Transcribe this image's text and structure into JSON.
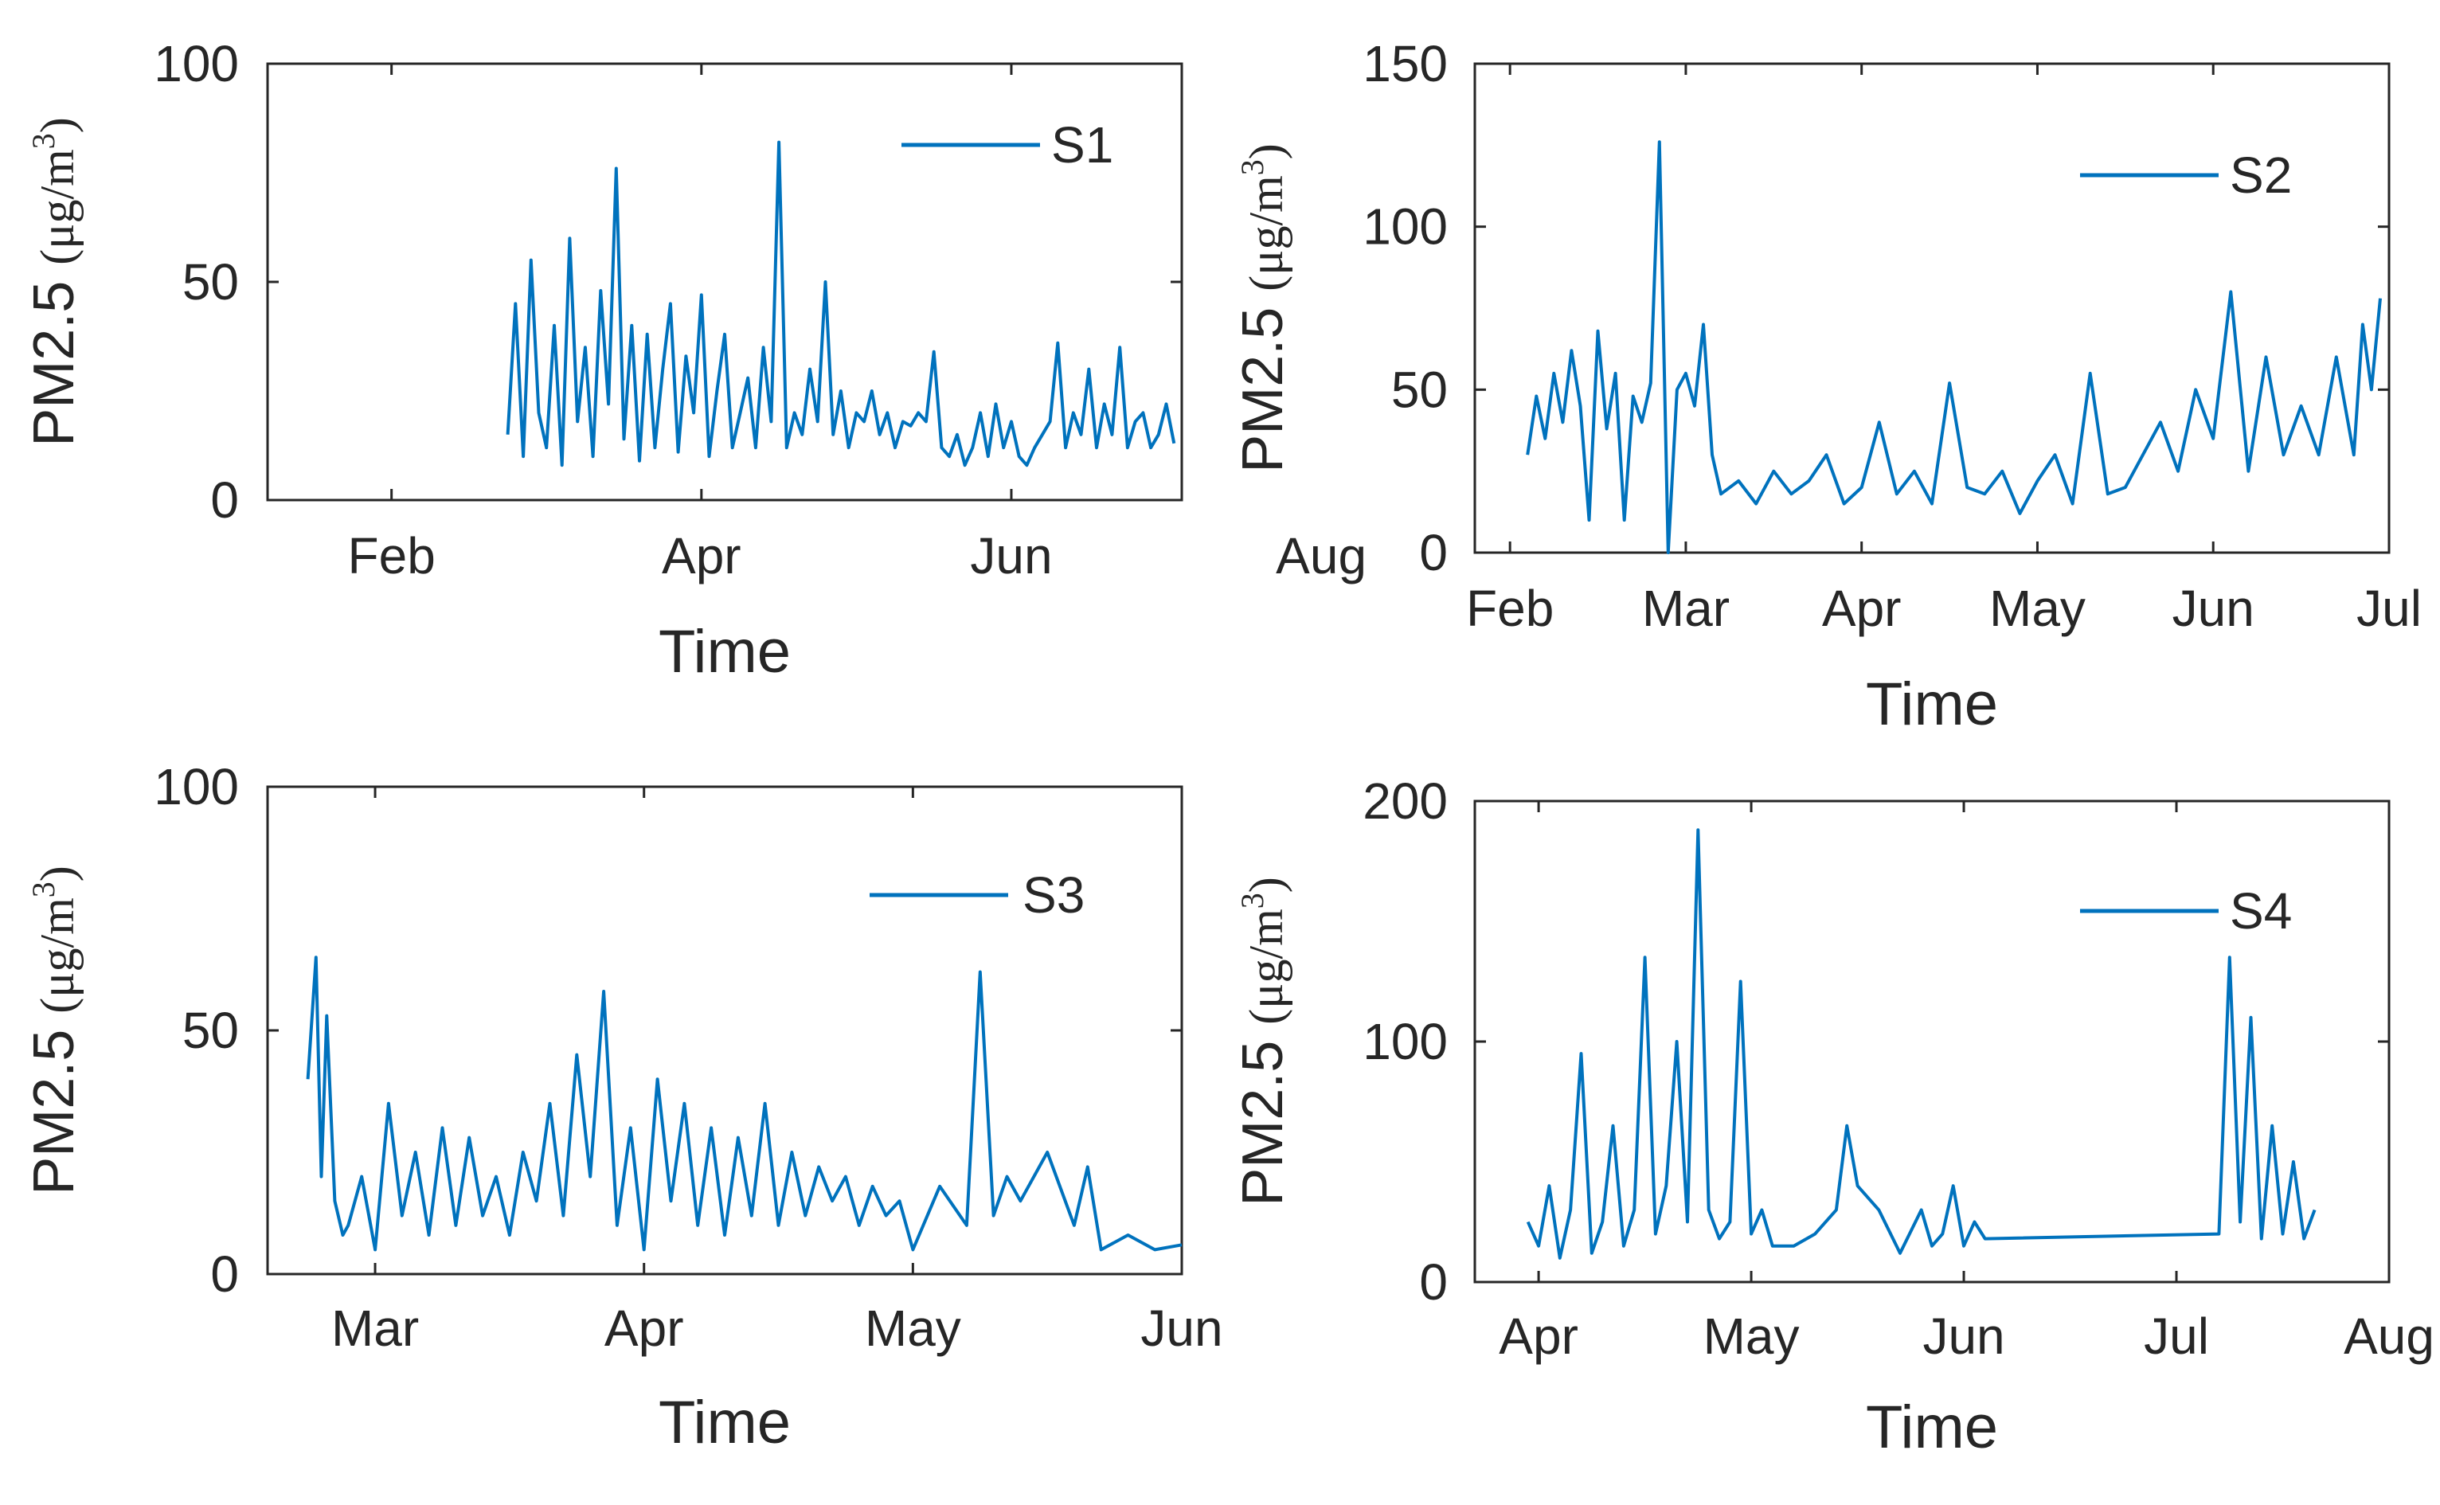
{
  "colors": {
    "series": "#0072BD",
    "axis": "#262626",
    "background": "#ffffff"
  },
  "chart_data": [
    {
      "type": "line",
      "panel": "top-left",
      "xlabel": "Time",
      "ylabel": "PM2.5",
      "yunit": "(μg/m",
      "yunit_sup": "3",
      "yunit_close": ")",
      "ylim": [
        0,
        100
      ],
      "yticks": [
        0,
        50,
        100
      ],
      "ytick_labels": [
        "0",
        "50",
        "100"
      ],
      "xlim": [
        1.2,
        7.1
      ],
      "xticks": [
        2,
        4,
        6,
        8
      ],
      "xtick_labels": [
        "Feb",
        "Apr",
        "Jun",
        "Aug"
      ],
      "legend": {
        "label": "S1",
        "position": "top-right"
      },
      "series": [
        {
          "name": "S1",
          "x": [
            2.75,
            2.8,
            2.85,
            2.9,
            2.95,
            3.0,
            3.05,
            3.1,
            3.15,
            3.2,
            3.25,
            3.3,
            3.35,
            3.4,
            3.45,
            3.5,
            3.55,
            3.6,
            3.65,
            3.7,
            3.75,
            3.8,
            3.85,
            3.9,
            3.95,
            4.0,
            4.05,
            4.1,
            4.15,
            4.2,
            4.25,
            4.3,
            4.35,
            4.4,
            4.45,
            4.5,
            4.55,
            4.6,
            4.65,
            4.7,
            4.75,
            4.8,
            4.85,
            4.9,
            4.95,
            5.0,
            5.05,
            5.1,
            5.15,
            5.2,
            5.25,
            5.3,
            5.35,
            5.4,
            5.45,
            5.5,
            5.55,
            5.6,
            5.65,
            5.7,
            5.75,
            5.8,
            5.85,
            5.9,
            5.95,
            6.0,
            6.05,
            6.1,
            6.15,
            6.2,
            6.25,
            6.3,
            6.35,
            6.4,
            6.45,
            6.5,
            6.55,
            6.6,
            6.65,
            6.7,
            6.75,
            6.8,
            6.85,
            6.9,
            6.95,
            7.0,
            7.05
          ],
          "values": [
            15,
            45,
            10,
            55,
            20,
            12,
            40,
            8,
            60,
            18,
            35,
            10,
            48,
            22,
            76,
            14,
            40,
            9,
            38,
            12,
            30,
            45,
            11,
            33,
            20,
            47,
            10,
            25,
            38,
            12,
            20,
            28,
            12,
            35,
            18,
            82,
            12,
            20,
            15,
            30,
            18,
            50,
            15,
            25,
            12,
            20,
            18,
            25,
            15,
            20,
            12,
            18,
            17,
            20,
            18,
            34,
            12,
            10,
            15,
            8,
            12,
            20,
            10,
            22,
            12,
            18,
            10,
            8,
            12,
            15,
            18,
            36,
            12,
            20,
            15,
            30,
            12,
            22,
            15,
            35,
            12,
            18,
            20,
            12,
            15,
            22,
            13
          ]
        }
      ]
    },
    {
      "type": "line",
      "panel": "top-right",
      "xlabel": "Time",
      "ylabel": "PM2.5",
      "yunit": "(μg/m",
      "yunit_sup": "3",
      "yunit_close": ")",
      "ylim": [
        0,
        150
      ],
      "yticks": [
        0,
        50,
        100,
        150
      ],
      "ytick_labels": [
        "0",
        "50",
        "100",
        "150"
      ],
      "xlim": [
        1.8,
        7.0
      ],
      "xticks": [
        2,
        3,
        4,
        5,
        6,
        7
      ],
      "xtick_labels": [
        "Feb",
        "Mar",
        "Apr",
        "May",
        "Jun",
        "Jul"
      ],
      "legend": {
        "label": "S2",
        "position": "top-right"
      },
      "series": [
        {
          "name": "S2",
          "x": [
            2.1,
            2.15,
            2.2,
            2.25,
            2.3,
            2.35,
            2.4,
            2.45,
            2.5,
            2.55,
            2.6,
            2.65,
            2.7,
            2.75,
            2.8,
            2.85,
            2.9,
            2.95,
            3.0,
            3.05,
            3.1,
            3.15,
            3.2,
            3.3,
            3.4,
            3.5,
            3.6,
            3.7,
            3.8,
            3.9,
            4.0,
            4.1,
            4.2,
            4.3,
            4.4,
            4.5,
            4.6,
            4.7,
            4.8,
            4.9,
            5.0,
            5.1,
            5.2,
            5.3,
            5.4,
            5.5,
            5.6,
            5.7,
            5.8,
            5.9,
            6.0,
            6.1,
            6.2,
            6.3,
            6.4,
            6.5,
            6.6,
            6.7,
            6.8,
            6.85,
            6.9,
            6.95
          ],
          "values": [
            30,
            48,
            35,
            55,
            40,
            62,
            45,
            10,
            68,
            38,
            55,
            10,
            48,
            40,
            52,
            126,
            0,
            50,
            55,
            45,
            70,
            30,
            18,
            22,
            15,
            25,
            18,
            22,
            30,
            15,
            20,
            40,
            18,
            25,
            15,
            52,
            20,
            18,
            25,
            12,
            22,
            30,
            15,
            55,
            18,
            20,
            30,
            40,
            25,
            50,
            35,
            80,
            25,
            60,
            30,
            45,
            30,
            60,
            30,
            70,
            50,
            78
          ]
        }
      ]
    },
    {
      "type": "line",
      "panel": "bottom-left",
      "xlabel": "Time",
      "ylabel": "PM2.5",
      "yunit": "(μg/m",
      "yunit_sup": "3",
      "yunit_close": ")",
      "ylim": [
        0,
        100
      ],
      "yticks": [
        0,
        50,
        100
      ],
      "ytick_labels": [
        "0",
        "50",
        "100"
      ],
      "xlim": [
        2.6,
        6.0
      ],
      "xticks": [
        3,
        4,
        5,
        6
      ],
      "xtick_labels": [
        "Mar",
        "Apr",
        "May",
        "Jun"
      ],
      "legend": {
        "label": "S3",
        "position": "top-right"
      },
      "series": [
        {
          "name": "S3",
          "x": [
            2.75,
            2.78,
            2.8,
            2.82,
            2.85,
            2.88,
            2.9,
            2.95,
            3.0,
            3.05,
            3.1,
            3.15,
            3.2,
            3.25,
            3.3,
            3.35,
            3.4,
            3.45,
            3.5,
            3.55,
            3.6,
            3.65,
            3.7,
            3.75,
            3.8,
            3.85,
            3.9,
            3.95,
            4.0,
            4.05,
            4.1,
            4.15,
            4.2,
            4.25,
            4.3,
            4.35,
            4.4,
            4.45,
            4.5,
            4.55,
            4.6,
            4.65,
            4.7,
            4.75,
            4.8,
            4.85,
            4.9,
            4.95,
            5.0,
            5.1,
            5.2,
            5.25,
            5.3,
            5.35,
            5.4,
            5.5,
            5.6,
            5.65,
            5.7,
            5.8,
            5.9,
            6.0
          ],
          "values": [
            40,
            65,
            20,
            53,
            15,
            8,
            10,
            20,
            5,
            35,
            12,
            25,
            8,
            30,
            10,
            28,
            12,
            20,
            8,
            25,
            15,
            35,
            12,
            45,
            20,
            58,
            10,
            30,
            5,
            40,
            15,
            35,
            10,
            30,
            8,
            28,
            12,
            35,
            10,
            25,
            12,
            22,
            15,
            20,
            10,
            18,
            12,
            15,
            5,
            18,
            10,
            62,
            12,
            20,
            15,
            25,
            10,
            22,
            5,
            8,
            5,
            6
          ]
        }
      ]
    },
    {
      "type": "line",
      "panel": "bottom-right",
      "xlabel": "Time",
      "ylabel": "PM2.5",
      "yunit": "(μg/m",
      "yunit_sup": "3",
      "yunit_close": ")",
      "ylim": [
        0,
        200
      ],
      "yticks": [
        0,
        100,
        200
      ],
      "ytick_labels": [
        "0",
        "100",
        "200"
      ],
      "xlim": [
        3.7,
        8.0
      ],
      "xticks": [
        4,
        5,
        6,
        7,
        8
      ],
      "xtick_labels": [
        "Apr",
        "May",
        "Jun",
        "Jul",
        "Aug"
      ],
      "legend": {
        "label": "S4",
        "position": "top-right"
      },
      "series": [
        {
          "name": "S4",
          "x": [
            3.95,
            4.0,
            4.05,
            4.1,
            4.15,
            4.2,
            4.25,
            4.3,
            4.35,
            4.4,
            4.45,
            4.5,
            4.55,
            4.6,
            4.65,
            4.7,
            4.75,
            4.8,
            4.85,
            4.9,
            4.95,
            5.0,
            5.05,
            5.1,
            5.2,
            5.3,
            5.4,
            5.45,
            5.5,
            5.6,
            5.7,
            5.8,
            5.85,
            5.9,
            5.95,
            6.0,
            6.05,
            6.1,
            7.2,
            7.25,
            7.3,
            7.35,
            7.4,
            7.45,
            7.5,
            7.55,
            7.6,
            7.65
          ],
          "values": [
            25,
            15,
            40,
            10,
            30,
            95,
            12,
            25,
            65,
            15,
            30,
            135,
            20,
            40,
            100,
            25,
            188,
            30,
            18,
            25,
            125,
            20,
            30,
            15,
            15,
            20,
            30,
            65,
            40,
            30,
            12,
            30,
            15,
            20,
            40,
            15,
            25,
            18,
            20,
            135,
            25,
            110,
            18,
            65,
            20,
            50,
            18,
            30
          ]
        }
      ]
    }
  ]
}
